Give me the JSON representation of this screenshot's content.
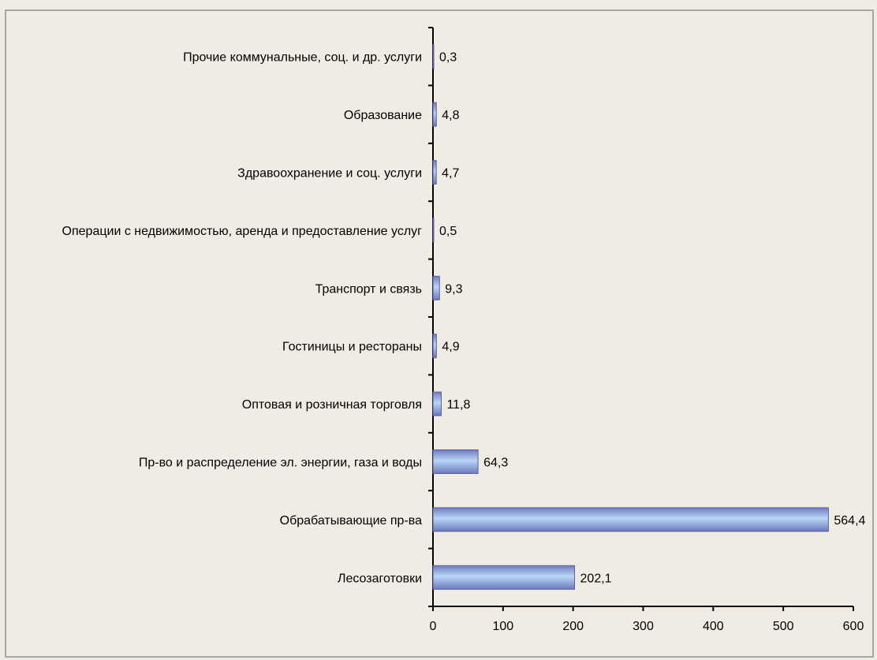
{
  "chart_data": {
    "type": "bar",
    "orientation": "horizontal",
    "categories": [
      "Прочие коммунальные, соц. и др. услуги",
      "Образование",
      "Здравоохранение и соц. услуги",
      "Операции с недвижимостью, аренда и предоставление услуг",
      "Транспорт и связь",
      "Гостиницы и рестораны",
      "Оптовая и розничная торговля",
      "Пр-во и распределение эл. энергии, газа и воды",
      "Обрабатывающие пр-ва",
      "Лесозаготовки"
    ],
    "values": [
      0.3,
      4.8,
      4.7,
      0.5,
      9.3,
      4.9,
      11.8,
      64.3,
      564.4,
      202.1
    ],
    "value_labels": [
      "0,3",
      "4,8",
      "4,7",
      "0,5",
      "9,3",
      "4,9",
      "11,8",
      "64,3",
      "564,4",
      "202,1"
    ],
    "xlim": [
      0,
      600
    ],
    "x_ticks": [
      0,
      100,
      200,
      300,
      400,
      500,
      600
    ],
    "title": "",
    "xlabel": "",
    "ylabel": "",
    "grid": false,
    "bar_color": "#8fb4e3",
    "bar_edge_color": "#5b5f9b",
    "background": "#f0ece3"
  }
}
